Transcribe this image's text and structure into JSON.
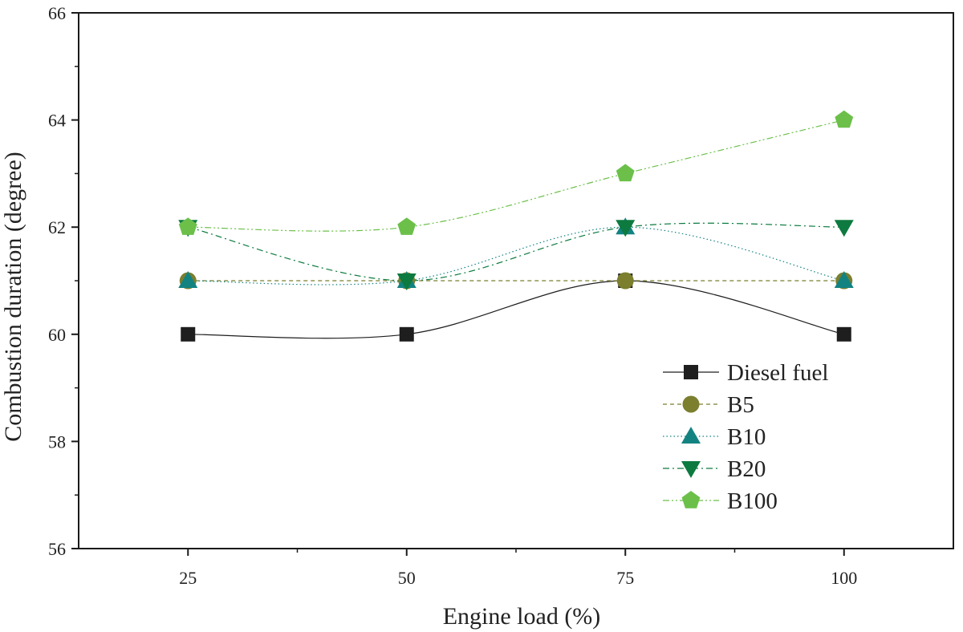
{
  "chart_data": {
    "type": "line",
    "title": "",
    "xlabel": "Engine load (%)",
    "ylabel": "Combustion duration (degree)",
    "x": [
      25,
      50,
      75,
      100
    ],
    "x_tick_labels": [
      "25",
      "50",
      "75",
      "100"
    ],
    "xlim": [
      12.5,
      112.5
    ],
    "ylim": [
      56,
      66
    ],
    "y_ticks": [
      56,
      58,
      60,
      62,
      64,
      66
    ],
    "y_tick_labels": [
      "56",
      "58",
      "60",
      "62",
      "64",
      "66"
    ],
    "grid": false,
    "legend_position": "lower-right",
    "smooth_lines": true,
    "series": [
      {
        "name": "Diesel fuel",
        "values": [
          60,
          60,
          61,
          60
        ],
        "color": "#1e1e1e",
        "marker": "square",
        "line_style": "solid"
      },
      {
        "name": "B5",
        "values": [
          61,
          61,
          61,
          61
        ],
        "color": "#7b7f2e",
        "marker": "circle",
        "line_style": "dashed"
      },
      {
        "name": "B10",
        "values": [
          61,
          61,
          62,
          61
        ],
        "color": "#138382",
        "marker": "triangle-up",
        "line_style": "dotted"
      },
      {
        "name": "B20",
        "values": [
          62,
          61,
          62,
          62
        ],
        "color": "#0d7a3f",
        "marker": "triangle-down",
        "line_style": "dash-dot"
      },
      {
        "name": "B100",
        "values": [
          62,
          62,
          63,
          64
        ],
        "color": "#6cc04a",
        "marker": "pentagon",
        "line_style": "dash-dot-dot"
      }
    ]
  }
}
